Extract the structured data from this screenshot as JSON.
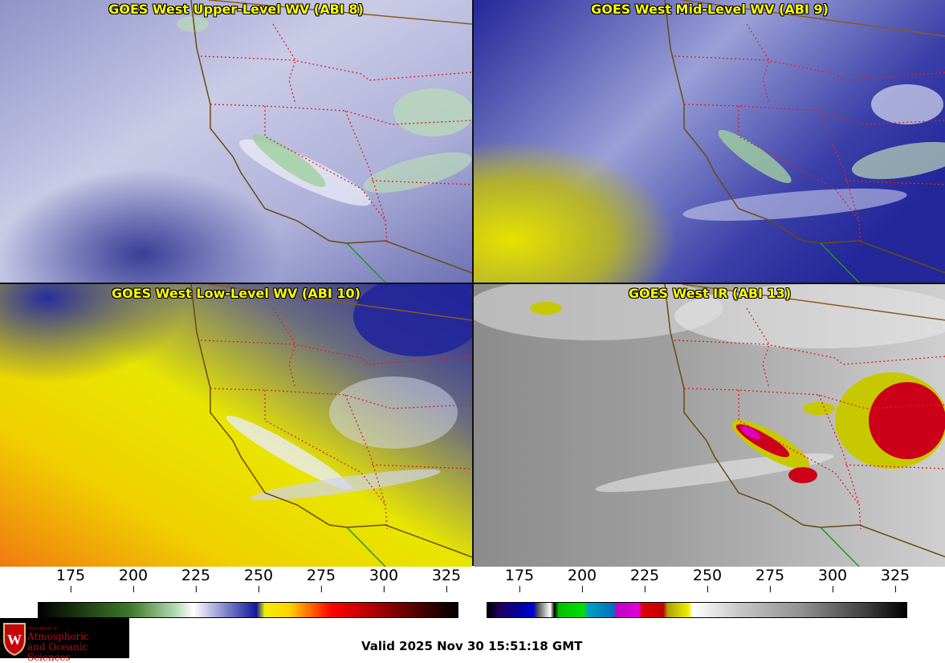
{
  "panels": [
    {
      "title": "GOES West Upper-Level WV (ABI 8)",
      "palette": "wv-upper"
    },
    {
      "title": "GOES West Mid-Level WV (ABI 9)",
      "palette": "wv-mid"
    },
    {
      "title": "GOES West Low-Level WV (ABI 10)",
      "palette": "wv-low"
    },
    {
      "title": "GOES West IR (ABI 13)",
      "palette": "ir"
    }
  ],
  "colorbars": {
    "wv": {
      "ticks": [
        "175",
        "200",
        "225",
        "250",
        "275",
        "300",
        "325"
      ],
      "range": [
        162,
        330
      ]
    },
    "ir": {
      "ticks": [
        "175",
        "200",
        "225",
        "250",
        "275",
        "300",
        "325"
      ],
      "range": [
        162,
        330
      ]
    }
  },
  "logo": {
    "dept_line": "Department of",
    "name_line1": "Atmospheric",
    "name_line2": "and Oceanic Sciences",
    "icon": "uw-crest-icon"
  },
  "footer": {
    "valid_text": "Valid 2025 Nov 30 15:51:18 GMT"
  },
  "colors": {
    "state_borders": "#e02020",
    "coastline": "#6b4a10",
    "mexico_border": "#1a9a1a",
    "title": "#ffff00"
  }
}
